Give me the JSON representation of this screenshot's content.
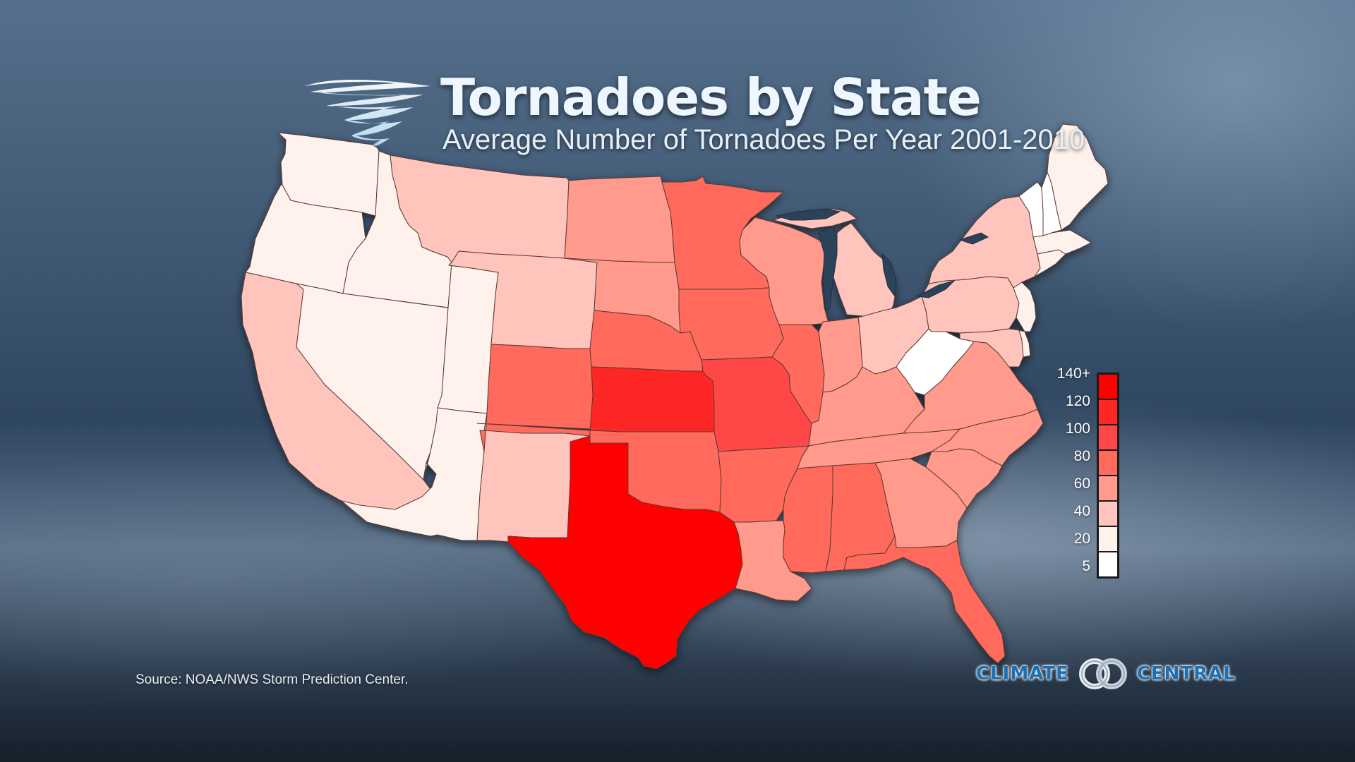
{
  "title": "Tornadoes by State",
  "subtitle": "Average Number of Tornadoes Per Year 2001-2010",
  "source": "Source: NOAA/NWS Storm Prediction Center.",
  "logo": {
    "left": "CLIMATE",
    "right": "CENTRAL"
  },
  "legend": {
    "labels": [
      "140+",
      "120",
      "100",
      "80",
      "60",
      "40",
      "20",
      "5"
    ],
    "colors": [
      "#ff0000",
      "#ff2626",
      "#ff4747",
      "#ff6a5c",
      "#ff9a8c",
      "#ffc4bc",
      "#fff1ec",
      "#ffffff"
    ]
  },
  "icons": [
    "tornado-icon",
    "climate-central-rings-icon"
  ],
  "states": [
    {
      "name": "WA",
      "class": 6
    },
    {
      "name": "OR",
      "class": 6
    },
    {
      "name": "CA",
      "class": 5
    },
    {
      "name": "ID",
      "class": 6
    },
    {
      "name": "NV",
      "class": 6
    },
    {
      "name": "UT",
      "class": 6
    },
    {
      "name": "AZ",
      "class": 6
    },
    {
      "name": "MT",
      "class": 5
    },
    {
      "name": "WY",
      "class": 5
    },
    {
      "name": "CO",
      "class": 3
    },
    {
      "name": "NM",
      "class": 5
    },
    {
      "name": "ND",
      "class": 4
    },
    {
      "name": "SD",
      "class": 4
    },
    {
      "name": "NE",
      "class": 3
    },
    {
      "name": "KS",
      "class": 1
    },
    {
      "name": "OK",
      "class": 3
    },
    {
      "name": "TX",
      "class": 0
    },
    {
      "name": "MN",
      "class": 3
    },
    {
      "name": "IA",
      "class": 3
    },
    {
      "name": "MO",
      "class": 2
    },
    {
      "name": "AR",
      "class": 3
    },
    {
      "name": "LA",
      "class": 4
    },
    {
      "name": "WI",
      "class": 4
    },
    {
      "name": "IL",
      "class": 3
    },
    {
      "name": "MI",
      "class": 5
    },
    {
      "name": "IN",
      "class": 4
    },
    {
      "name": "OH",
      "class": 5
    },
    {
      "name": "KY",
      "class": 4
    },
    {
      "name": "TN",
      "class": 4
    },
    {
      "name": "MS",
      "class": 3
    },
    {
      "name": "AL",
      "class": 3
    },
    {
      "name": "GA",
      "class": 4
    },
    {
      "name": "FL",
      "class": 3
    },
    {
      "name": "SC",
      "class": 4
    },
    {
      "name": "NC",
      "class": 4
    },
    {
      "name": "VA",
      "class": 4
    },
    {
      "name": "WV",
      "class": 7
    },
    {
      "name": "PA",
      "class": 5
    },
    {
      "name": "NY",
      "class": 5
    },
    {
      "name": "MD",
      "class": 5
    },
    {
      "name": "DE",
      "class": 6
    },
    {
      "name": "NJ",
      "class": 6
    },
    {
      "name": "CT",
      "class": 6
    },
    {
      "name": "MA",
      "class": 6
    },
    {
      "name": "VT",
      "class": 7
    },
    {
      "name": "NH",
      "class": 7
    },
    {
      "name": "ME",
      "class": 6
    }
  ]
}
